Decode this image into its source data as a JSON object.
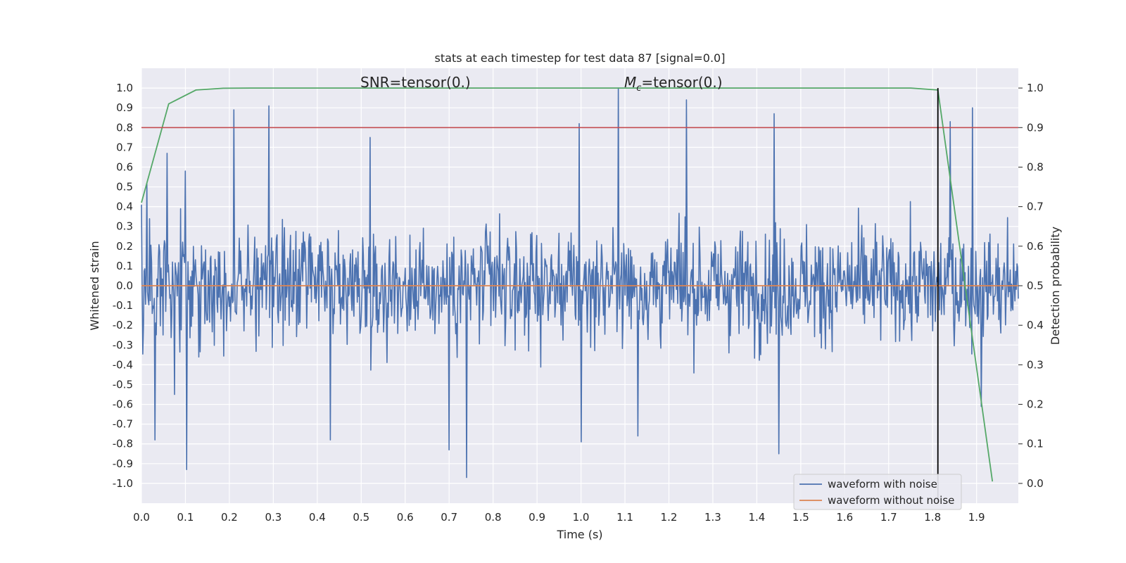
{
  "chart_data": {
    "type": "line",
    "title": "stats at each timestep for test data 87 [signal=0.0]",
    "xlabel": "Time (s)",
    "ylabel": "Whitened strain",
    "y2label": "Detection probability",
    "xlim": [
      0.0,
      1.995
    ],
    "ylim": [
      -1.1,
      1.1
    ],
    "y2lim": [
      -0.05,
      1.05
    ],
    "xticks": [
      "0.0",
      "0.1",
      "0.2",
      "0.3",
      "0.4",
      "0.5",
      "0.6",
      "0.7",
      "0.8",
      "0.9",
      "1.0",
      "1.1",
      "1.2",
      "1.3",
      "1.4",
      "1.5",
      "1.6",
      "1.7",
      "1.8",
      "1.9"
    ],
    "yticks": [
      "1.0",
      "0.9",
      "0.8",
      "0.7",
      "0.6",
      "0.5",
      "0.4",
      "0.3",
      "0.2",
      "0.1",
      "0.0",
      "-0.1",
      "-0.2",
      "-0.3",
      "-0.4",
      "-0.5",
      "-0.6",
      "-0.7",
      "-0.8",
      "-0.9",
      "-1.0"
    ],
    "y2ticks": [
      "1.0",
      "0.9",
      "0.8",
      "0.7",
      "0.6",
      "0.5",
      "0.4",
      "0.3",
      "0.2",
      "0.1",
      "0.0"
    ],
    "grid": true,
    "legend_position": "lower-right",
    "annotations": {
      "snr": "SNR=tensor(0.)",
      "mc_symbol": "M",
      "mc_sub": "c",
      "mc_rest": "=tensor(0.)"
    },
    "series": [
      {
        "name": "waveform with noise",
        "color": "#4c72b0",
        "note": "noisy whitened strain, approx. zero mean, |y| mostly < 0.6, peak ~1.0",
        "peaks": [
          [
            0.0,
            0.41
          ],
          [
            0.012,
            0.52
          ],
          [
            0.03,
            -0.78
          ],
          [
            0.058,
            0.67
          ],
          [
            0.075,
            -0.55
          ],
          [
            0.1,
            0.58
          ],
          [
            0.103,
            -0.93
          ],
          [
            0.21,
            0.89
          ],
          [
            0.29,
            0.91
          ],
          [
            0.43,
            -0.78
          ],
          [
            0.52,
            0.75
          ],
          [
            0.7,
            -0.83
          ],
          [
            0.74,
            -0.97
          ],
          [
            0.996,
            0.82
          ],
          [
            1.0,
            -0.79
          ],
          [
            1.085,
            1.0
          ],
          [
            1.13,
            -0.76
          ],
          [
            1.24,
            0.94
          ],
          [
            1.44,
            0.87
          ],
          [
            1.45,
            -0.85
          ],
          [
            1.84,
            0.83
          ],
          [
            1.89,
            0.9
          ],
          [
            1.91,
            -0.61
          ]
        ]
      },
      {
        "name": "waveform without noise",
        "color": "#dd8452",
        "x": [
          0.0,
          1.995
        ],
        "y": [
          0.0,
          0.0
        ]
      },
      {
        "name": "detection probability",
        "color": "#55a868",
        "axis": "right",
        "x": [
          0.0,
          0.062,
          0.124,
          0.186,
          0.248,
          1.75,
          1.812,
          1.874,
          1.936
        ],
        "y": [
          0.71,
          0.96,
          0.995,
          0.9995,
          1.0,
          1.0,
          0.995,
          0.5,
          0.005
        ]
      }
    ],
    "hlines": [
      {
        "y": 0.8,
        "color": "#c44e52"
      }
    ],
    "vlines": [
      {
        "x": 1.812,
        "color": "#000000"
      }
    ]
  }
}
